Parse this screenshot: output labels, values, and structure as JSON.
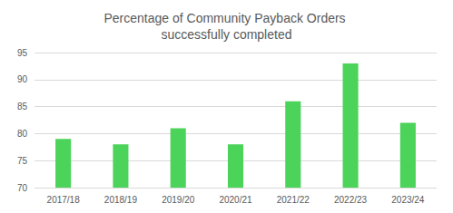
{
  "chart_data": {
    "type": "bar",
    "title": "Percentage of Community Payback Orders successfully completed",
    "categories": [
      "2017/18",
      "2018/19",
      "2019/20",
      "2020/21",
      "2021/22",
      "2022/23",
      "2023/24"
    ],
    "values": [
      79,
      78,
      81,
      78,
      86,
      93,
      82
    ],
    "color": "#4bd35a",
    "ylim": [
      70,
      95
    ],
    "yticks": [
      70,
      75,
      80,
      85,
      90,
      95
    ],
    "grid": true
  }
}
